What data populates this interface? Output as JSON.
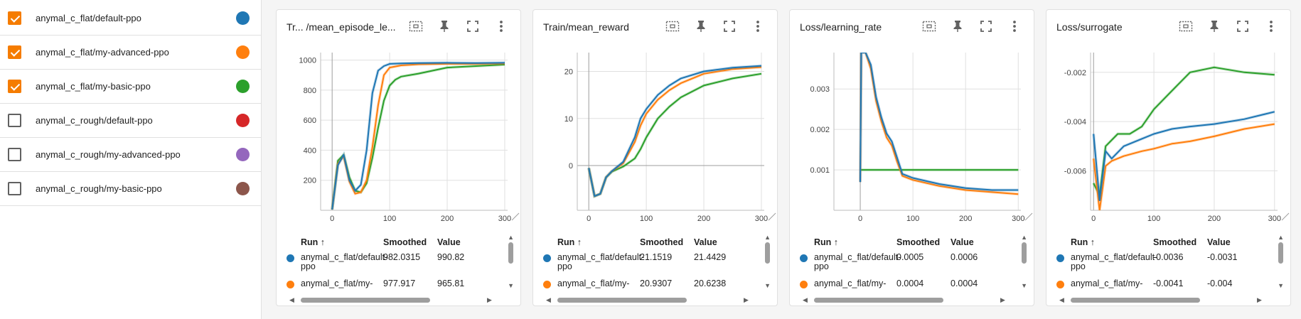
{
  "sidebar": {
    "runs": [
      {
        "name": "anymal_c_flat/default-ppo",
        "checked": true,
        "color": "#1f77b4"
      },
      {
        "name": "anymal_c_flat/my-advanced-ppo",
        "checked": true,
        "color": "#ff7f0e"
      },
      {
        "name": "anymal_c_flat/my-basic-ppo",
        "checked": true,
        "color": "#2ca02c"
      },
      {
        "name": "anymal_c_rough/default-ppo",
        "checked": false,
        "color": "#d62728"
      },
      {
        "name": "anymal_c_rough/my-advanced-ppo",
        "checked": false,
        "color": "#9467bd"
      },
      {
        "name": "anymal_c_rough/my-basic-ppo",
        "checked": false,
        "color": "#8c564b"
      }
    ]
  },
  "table_headers": {
    "run": "Run ↑",
    "smoothed": "Smoothed",
    "value": "Value"
  },
  "cards": [
    {
      "title": "Tr... /mean_episode_le...",
      "rows": [
        {
          "run_line1": "anymal_c_flat/default-",
          "run_line2": "ppo",
          "smoothed": "982.0315",
          "value": "990.82",
          "color": "#1f77b4"
        },
        {
          "run_line1": "anymal_c_flat/my-",
          "run_line2": "",
          "smoothed": "977.917",
          "value": "965.81",
          "color": "#ff7f0e"
        }
      ]
    },
    {
      "title": "Train/mean_reward",
      "rows": [
        {
          "run_line1": "anymal_c_flat/default-",
          "run_line2": "ppo",
          "smoothed": "21.1519",
          "value": "21.4429",
          "color": "#1f77b4"
        },
        {
          "run_line1": "anymal_c_flat/my-",
          "run_line2": "",
          "smoothed": "20.9307",
          "value": "20.6238",
          "color": "#ff7f0e"
        }
      ]
    },
    {
      "title": "Loss/learning_rate",
      "rows": [
        {
          "run_line1": "anymal_c_flat/default-",
          "run_line2": "ppo",
          "smoothed": "0.0005",
          "value": "0.0006",
          "color": "#1f77b4"
        },
        {
          "run_line1": "anymal_c_flat/my-",
          "run_line2": "",
          "smoothed": "0.0004",
          "value": "0.0004",
          "color": "#ff7f0e"
        }
      ]
    },
    {
      "title": "Loss/surrogate",
      "rows": [
        {
          "run_line1": "anymal_c_flat/default-",
          "run_line2": "ppo",
          "smoothed": "-0.0036",
          "value": "-0.0031",
          "color": "#1f77b4"
        },
        {
          "run_line1": "anymal_c_flat/my-",
          "run_line2": "",
          "smoothed": "-0.0041",
          "value": "-0.004",
          "color": "#ff7f0e"
        }
      ]
    }
  ],
  "chart_data": [
    {
      "type": "line",
      "title": "Tr... /mean_episode_le...",
      "xlim": [
        -20,
        305
      ],
      "ylim": [
        0,
        1050
      ],
      "xticks": [
        0,
        100,
        200,
        300
      ],
      "yticks": [
        200,
        400,
        600,
        800,
        1000
      ],
      "xtick_labels": [
        "0",
        "100",
        "200",
        "300"
      ],
      "ytick_labels": [
        "200",
        "400",
        "600",
        "800",
        "1000"
      ],
      "grid": true,
      "series": [
        {
          "name": "anymal_c_flat/default-ppo",
          "color": "#1f77b4",
          "x": [
            0,
            10,
            20,
            30,
            40,
            50,
            60,
            70,
            80,
            90,
            100,
            120,
            150,
            200,
            250,
            300
          ],
          "y": [
            5,
            300,
            370,
            200,
            130,
            170,
            400,
            780,
            930,
            960,
            975,
            978,
            980,
            982,
            980,
            982
          ]
        },
        {
          "name": "anymal_c_flat/my-advanced-ppo",
          "color": "#ff7f0e",
          "x": [
            0,
            10,
            20,
            30,
            40,
            50,
            60,
            70,
            80,
            90,
            100,
            120,
            150,
            200,
            250,
            300
          ],
          "y": [
            5,
            310,
            360,
            190,
            110,
            120,
            200,
            420,
            700,
            900,
            950,
            965,
            972,
            975,
            975,
            978
          ]
        },
        {
          "name": "anymal_c_flat/my-basic-ppo",
          "color": "#2ca02c",
          "x": [
            0,
            10,
            20,
            30,
            40,
            50,
            60,
            70,
            80,
            90,
            100,
            110,
            120,
            150,
            200,
            250,
            300
          ],
          "y": [
            5,
            330,
            370,
            220,
            130,
            120,
            180,
            350,
            550,
            730,
            830,
            870,
            890,
            910,
            950,
            960,
            970
          ]
        }
      ]
    },
    {
      "type": "line",
      "title": "Train/mean_reward",
      "xlim": [
        -20,
        305
      ],
      "ylim": [
        -9.5,
        24
      ],
      "xticks": [
        0,
        100,
        200,
        300
      ],
      "yticks": [
        0,
        10,
        20
      ],
      "xtick_labels": [
        "0",
        "100",
        "200",
        "300"
      ],
      "ytick_labels": [
        "0",
        "10",
        "20"
      ],
      "grid": true,
      "series": [
        {
          "name": "anymal_c_flat/default-ppo",
          "color": "#1f77b4",
          "x": [
            0,
            10,
            20,
            30,
            40,
            60,
            80,
            90,
            100,
            120,
            140,
            160,
            200,
            250,
            300
          ],
          "y": [
            -0.5,
            -6.5,
            -6,
            -2.5,
            -1.2,
            0.8,
            6,
            10,
            12,
            15,
            17,
            18.5,
            20,
            20.8,
            21.2
          ]
        },
        {
          "name": "anymal_c_flat/my-advanced-ppo",
          "color": "#ff7f0e",
          "x": [
            0,
            10,
            20,
            30,
            40,
            60,
            80,
            90,
            100,
            120,
            140,
            160,
            200,
            250,
            300
          ],
          "y": [
            -0.5,
            -6.5,
            -6,
            -2.5,
            -1.2,
            0.5,
            5,
            8.5,
            11,
            14,
            16,
            17.5,
            19.5,
            20.5,
            20.9
          ]
        },
        {
          "name": "anymal_c_flat/my-basic-ppo",
          "color": "#2ca02c",
          "x": [
            0,
            10,
            20,
            30,
            40,
            60,
            80,
            90,
            100,
            120,
            140,
            160,
            200,
            250,
            300
          ],
          "y": [
            -0.5,
            -6.5,
            -6,
            -2.5,
            -1.3,
            -0.2,
            1.5,
            3.5,
            6,
            10,
            12.5,
            14.5,
            17,
            18.5,
            19.5
          ]
        }
      ]
    },
    {
      "type": "line",
      "title": "Loss/learning_rate",
      "xlim": [
        -50,
        305
      ],
      "ylim": [
        0,
        0.0039
      ],
      "xticks": [
        0,
        100,
        200,
        300
      ],
      "yticks": [
        0.001,
        0.002,
        0.003
      ],
      "xtick_labels": [
        "0",
        "100",
        "200",
        "300"
      ],
      "ytick_labels": [
        "0.001",
        "0.002",
        "0.003"
      ],
      "grid": true,
      "series": [
        {
          "name": "anymal_c_flat/default-ppo",
          "color": "#1f77b4",
          "x": [
            0,
            2,
            10,
            20,
            30,
            40,
            50,
            60,
            70,
            80,
            100,
            150,
            200,
            250,
            300
          ],
          "y": [
            0.0007,
            0.0039,
            0.0039,
            0.0036,
            0.0028,
            0.0023,
            0.0019,
            0.0017,
            0.0013,
            0.0009,
            0.0008,
            0.00065,
            0.00055,
            0.0005,
            0.0005
          ]
        },
        {
          "name": "anymal_c_flat/my-advanced-ppo",
          "color": "#ff7f0e",
          "x": [
            0,
            2,
            10,
            20,
            30,
            40,
            50,
            60,
            70,
            80,
            100,
            150,
            200,
            250,
            300
          ],
          "y": [
            0.0007,
            0.0039,
            0.0039,
            0.0035,
            0.0027,
            0.0022,
            0.0018,
            0.0016,
            0.0012,
            0.00085,
            0.00075,
            0.0006,
            0.0005,
            0.00045,
            0.0004
          ]
        },
        {
          "name": "anymal_c_flat/my-basic-ppo",
          "color": "#2ca02c",
          "x": [
            0,
            300
          ],
          "y": [
            0.001,
            0.001
          ]
        }
      ]
    },
    {
      "type": "line",
      "title": "Loss/surrogate",
      "xlim": [
        -5,
        305
      ],
      "ylim": [
        -0.0076,
        -0.0012
      ],
      "xticks": [
        0,
        100,
        200,
        300
      ],
      "yticks": [
        -0.006,
        -0.004,
        -0.002
      ],
      "xtick_labels": [
        "0",
        "100",
        "200",
        "300"
      ],
      "ytick_labels": [
        "-0.006",
        "-0.004",
        "-0.002"
      ],
      "grid": true,
      "series": [
        {
          "name": "anymal_c_flat/default-ppo",
          "color": "#1f77b4",
          "x": [
            0,
            10,
            20,
            30,
            50,
            80,
            100,
            130,
            160,
            200,
            250,
            300
          ],
          "y": [
            -0.0045,
            -0.0072,
            -0.0052,
            -0.0055,
            -0.005,
            -0.0047,
            -0.0045,
            -0.0043,
            -0.0042,
            -0.0041,
            -0.0039,
            -0.0036
          ]
        },
        {
          "name": "anymal_c_flat/my-advanced-ppo",
          "color": "#ff7f0e",
          "x": [
            0,
            10,
            20,
            30,
            50,
            80,
            100,
            130,
            160,
            200,
            250,
            300
          ],
          "y": [
            -0.0055,
            -0.0076,
            -0.0058,
            -0.0056,
            -0.0054,
            -0.0052,
            -0.0051,
            -0.0049,
            -0.0048,
            -0.0046,
            -0.0043,
            -0.0041
          ]
        },
        {
          "name": "anymal_c_flat/my-basic-ppo",
          "color": "#2ca02c",
          "x": [
            0,
            10,
            20,
            40,
            60,
            80,
            100,
            120,
            140,
            160,
            200,
            250,
            300
          ],
          "y": [
            -0.0065,
            -0.007,
            -0.005,
            -0.0045,
            -0.0045,
            -0.0042,
            -0.0035,
            -0.003,
            -0.0025,
            -0.002,
            -0.0018,
            -0.002,
            -0.0021
          ]
        }
      ]
    }
  ]
}
